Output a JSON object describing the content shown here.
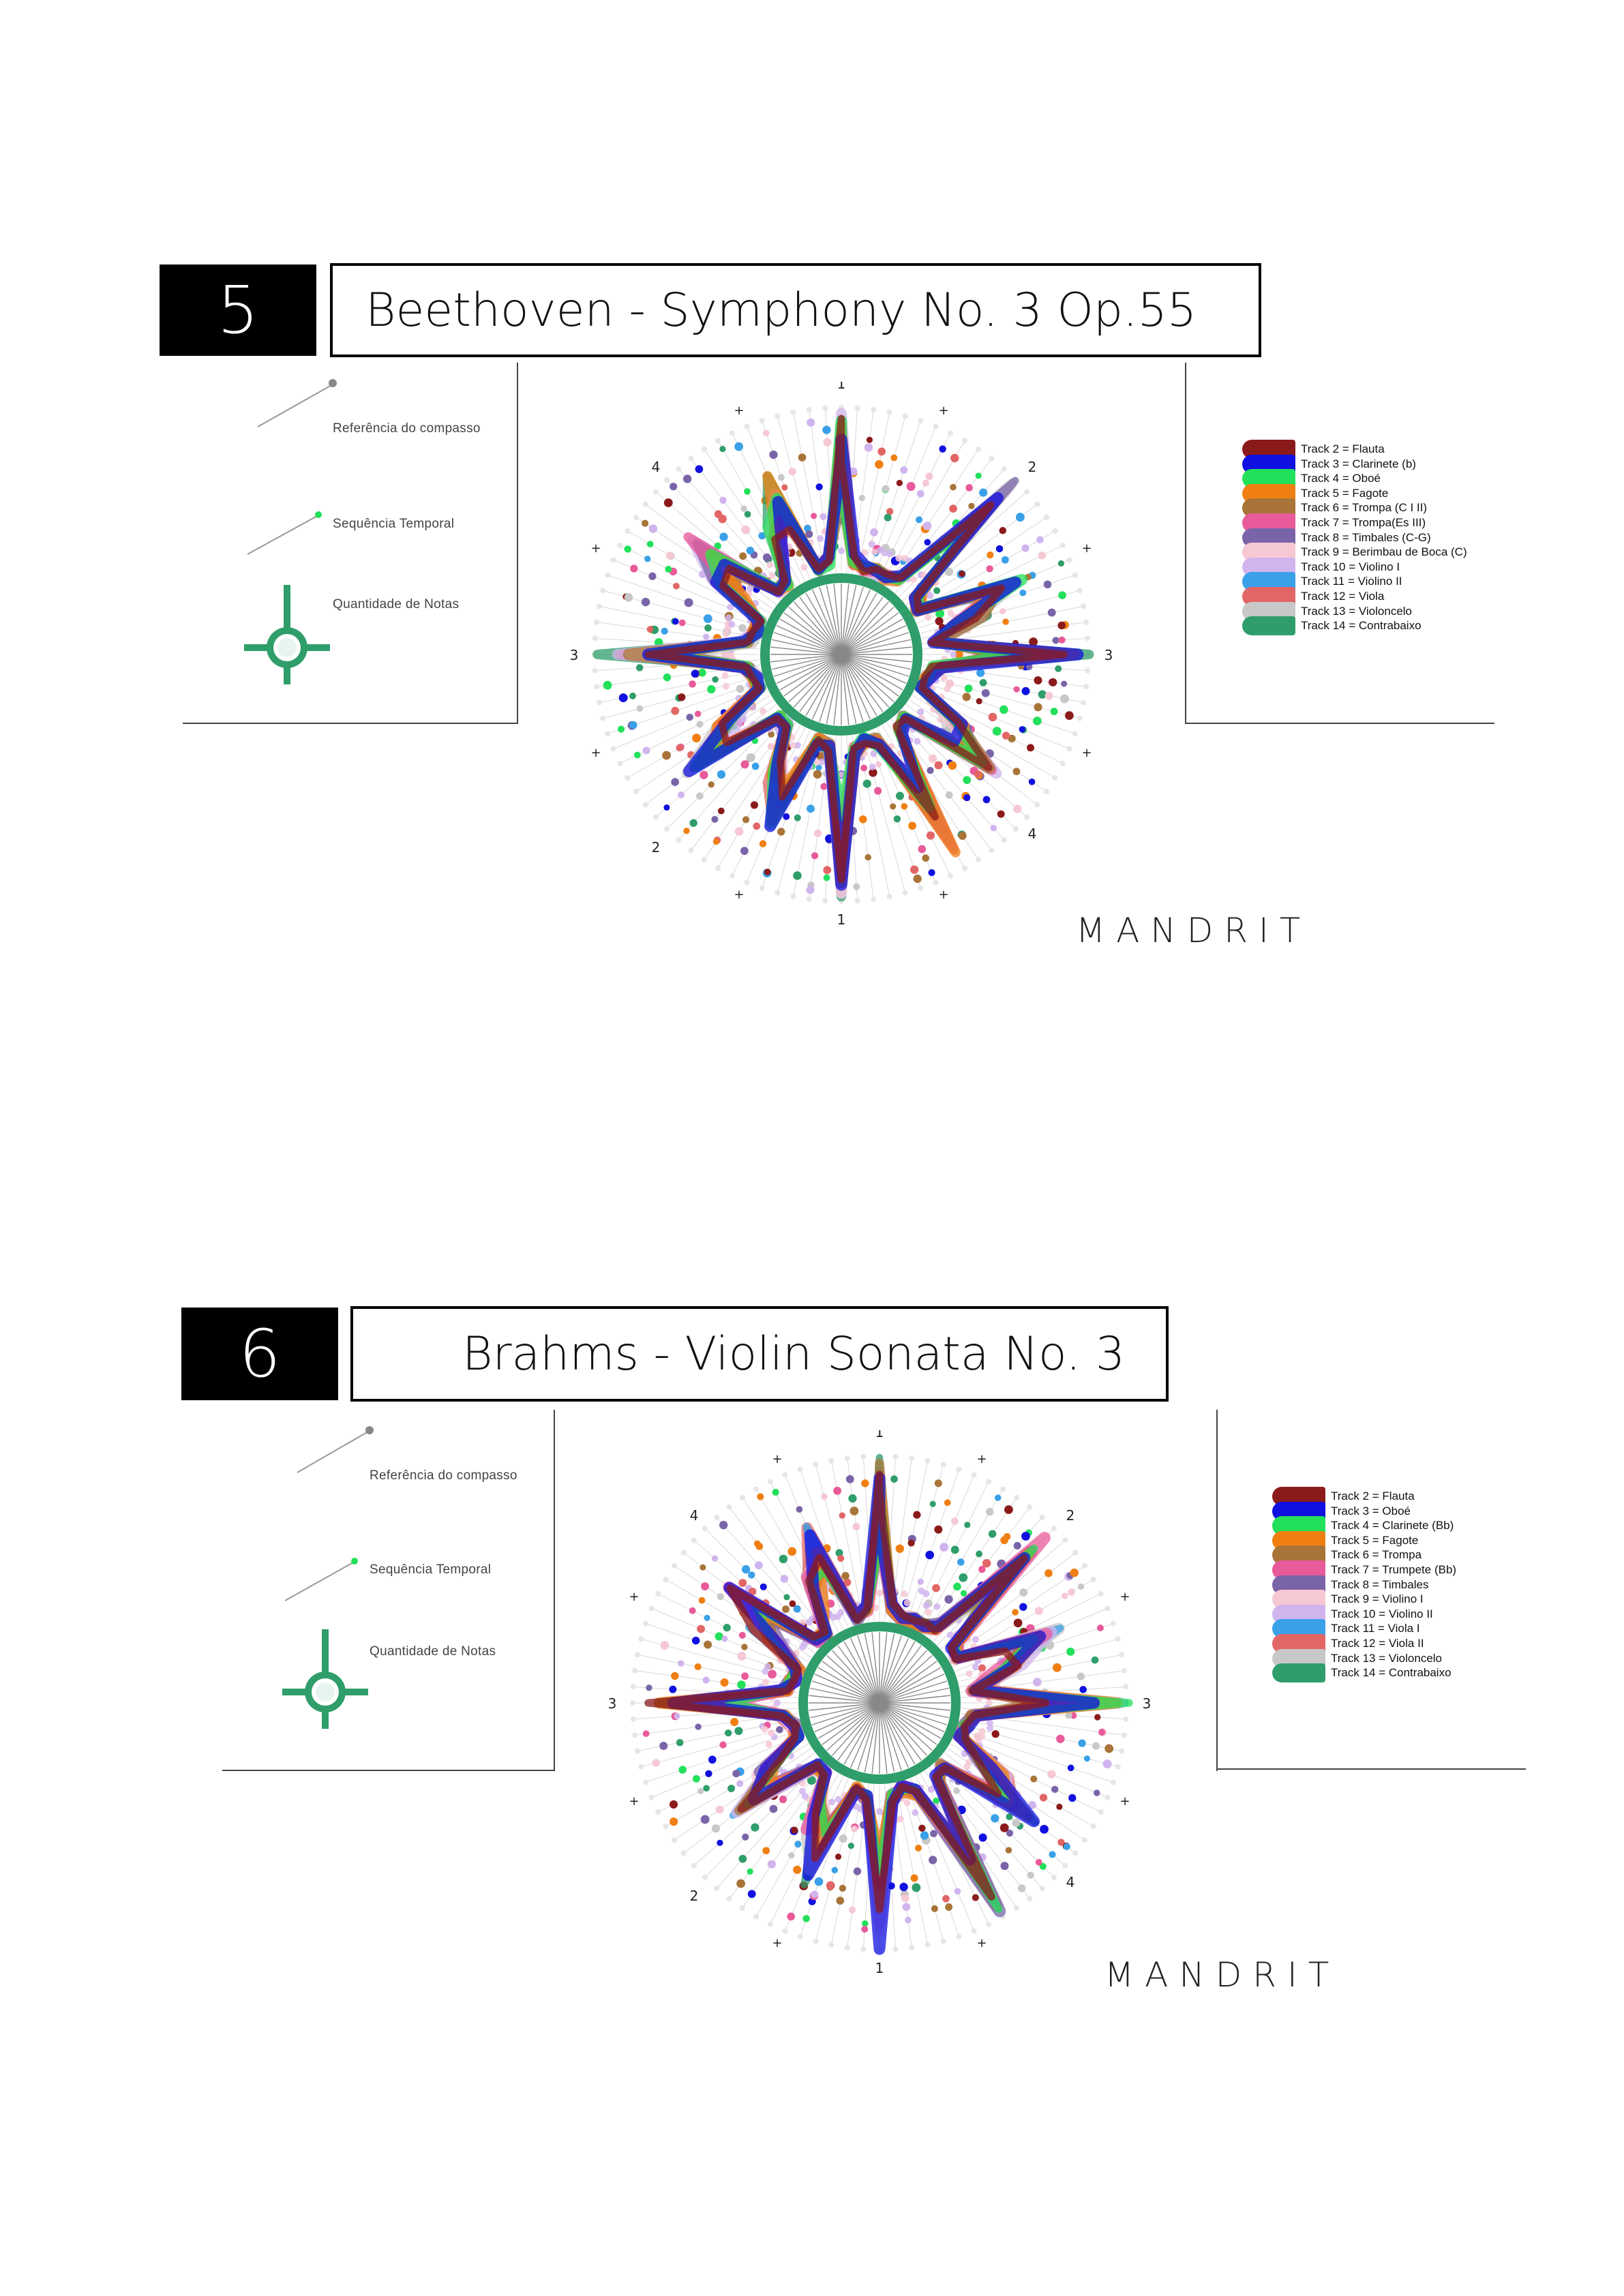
{
  "sections": [
    {
      "number": "5",
      "title": "Beethoven -  Symphony No. 3 Op.55",
      "legend_left": {
        "reference": "Referência do compasso",
        "sequence": "Sequência Temporal",
        "quantity": "Quantidade de Notas"
      },
      "compass_labels": {
        "top": "1",
        "bottom": "1",
        "left": "3",
        "right": "3",
        "top_right": "2",
        "bottom_left": "2",
        "top_left": "4",
        "bottom_right": "4",
        "plus": "+"
      },
      "tracks": [
        {
          "label": "Track 2 = Flauta",
          "color": "#8b1a1a"
        },
        {
          "label": "Track 3 = Clarinete (b)",
          "color": "#1010e0"
        },
        {
          "label": "Track 4 = Oboé",
          "color": "#22e05a"
        },
        {
          "label": "Track 5 = Fagote",
          "color": "#f07f12"
        },
        {
          "label": "Track 6 = Trompa (C I II)",
          "color": "#a87438"
        },
        {
          "label": "Track 7 = Trompa(Es III)",
          "color": "#e85a9a"
        },
        {
          "label": "Track 8 = Timbales (C-G)",
          "color": "#7a64a8"
        },
        {
          "label": "Track 9 = Berimbau de Boca (C)",
          "color": "#f6c8d4"
        },
        {
          "label": "Track 10 = Violino I",
          "color": "#d0b4ee"
        },
        {
          "label": "Track 11 = Violino II",
          "color": "#3aa0e8"
        },
        {
          "label": "Track 12 = Viola",
          "color": "#e26666"
        },
        {
          "label": "Track 13 = Violoncelo",
          "color": "#c8c8c8"
        },
        {
          "label": "Track 14 = Contrabaixo",
          "color": "#2f9e6a"
        }
      ],
      "signature": "MANDRIT"
    },
    {
      "number": "6",
      "title": "Brahms - Violin Sonata No. 3",
      "legend_left": {
        "reference": "Referência do compasso",
        "sequence": "Sequência Temporal",
        "quantity": "Quantidade de Notas"
      },
      "compass_labels": {
        "top": "1",
        "bottom": "1",
        "left": "3",
        "right": "3",
        "top_right": "2",
        "bottom_left": "2",
        "top_left": "4",
        "bottom_right": "4",
        "plus": "+"
      },
      "tracks": [
        {
          "label": "Track 2 = Flauta",
          "color": "#8b1a1a"
        },
        {
          "label": "Track 3 = Oboé",
          "color": "#1010e0"
        },
        {
          "label": "Track 4 = Clarinete (Bb)",
          "color": "#22e05a"
        },
        {
          "label": "Track 5 = Fagote",
          "color": "#f07f12"
        },
        {
          "label": "Track 6 = Trompa",
          "color": "#a87438"
        },
        {
          "label": "Track 7 = Trumpete (Bb)",
          "color": "#e85a9a"
        },
        {
          "label": "Track 8 = Timbales",
          "color": "#7a64a8"
        },
        {
          "label": "Track 9 = Violino I",
          "color": "#f6c8d4"
        },
        {
          "label": "Track 10 = Violino II",
          "color": "#d0b4ee"
        },
        {
          "label": "Track 11 = Viola I",
          "color": "#3aa0e8"
        },
        {
          "label": "Track 12 = Viola II",
          "color": "#e26666"
        },
        {
          "label": "Track 13 = Violoncelo",
          "color": "#c8c8c8"
        },
        {
          "label": "Track 14 = Contrabaixo",
          "color": "#2f9e6a"
        }
      ],
      "signature": "MANDRIT"
    }
  ]
}
